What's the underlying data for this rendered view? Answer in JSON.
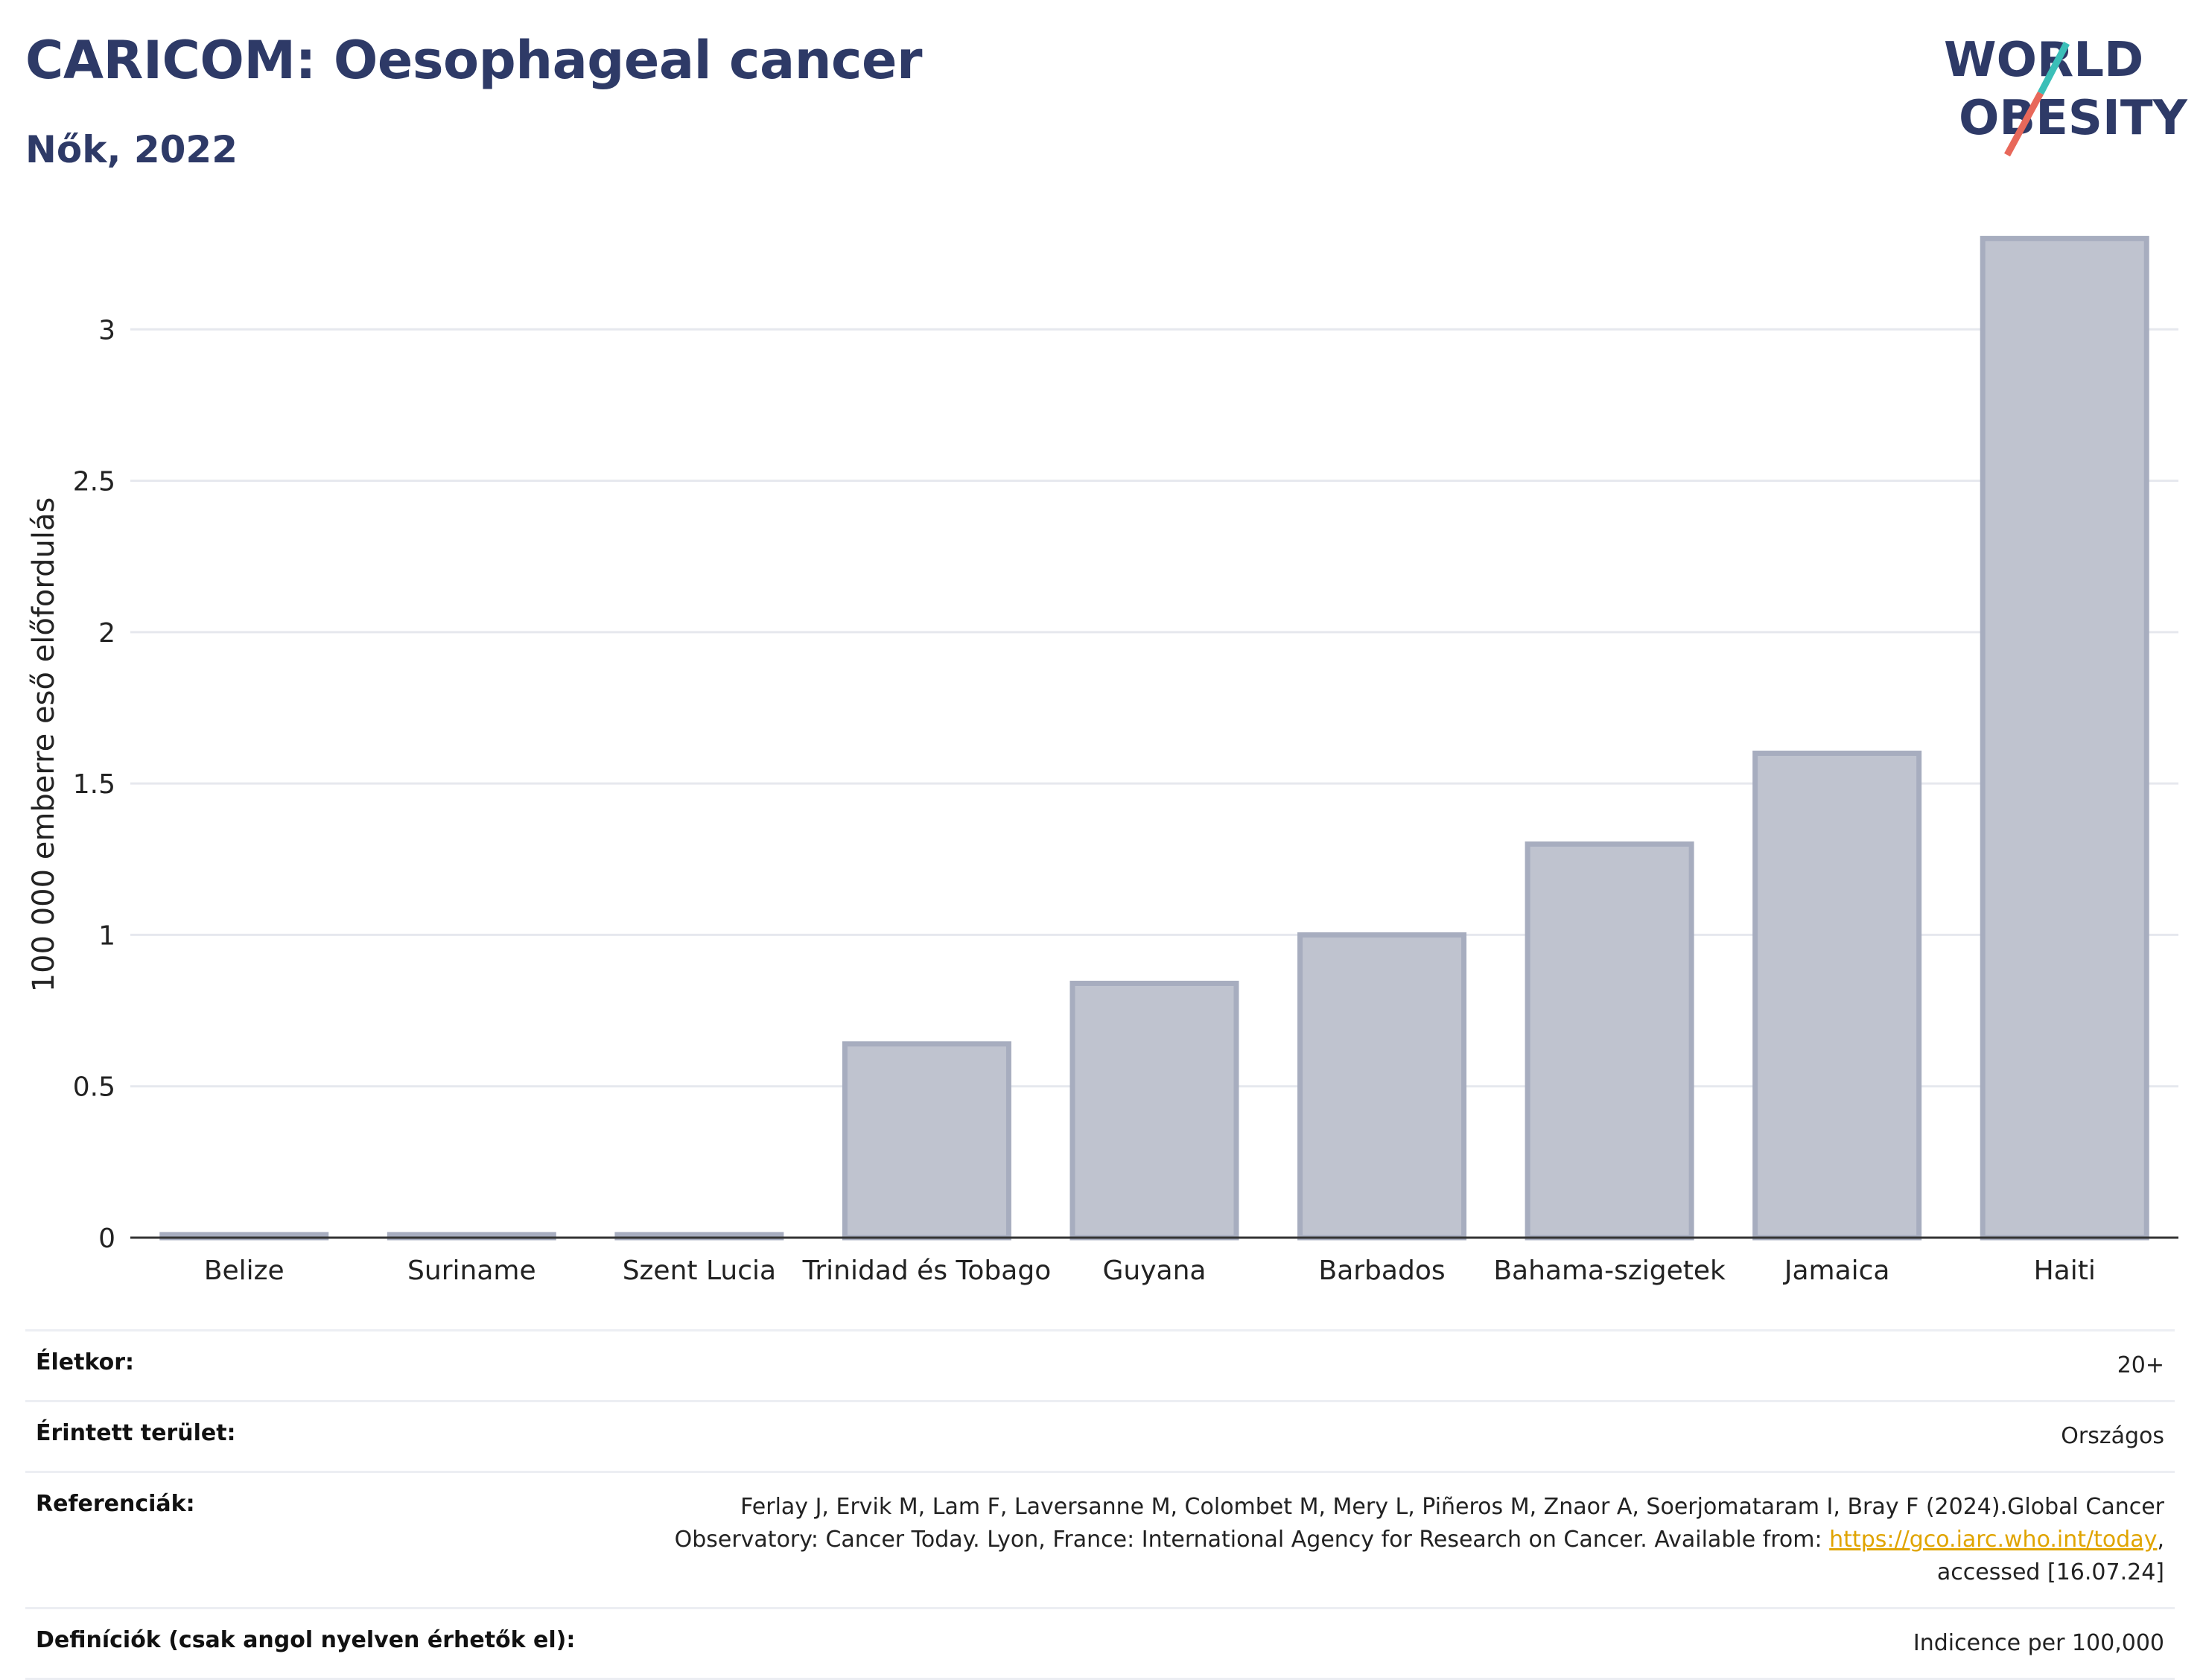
{
  "header": {
    "title": "CARICOM: Oesophageal cancer",
    "subtitle": "Nők, 2022"
  },
  "logo": {
    "line1": "WORLD",
    "line2": "OBESITY"
  },
  "chart_data": {
    "type": "bar",
    "title": "CARICOM: Oesophageal cancer",
    "subtitle": "Nők, 2022",
    "ylabel": "100 000 emberre eső előfordulás",
    "xlabel": "",
    "categories": [
      "Belize",
      "Suriname",
      "Szent Lucia",
      "Trinidad és Tobago",
      "Guyana",
      "Barbados",
      "Bahama-szigetek",
      "Jamaica",
      "Haiti"
    ],
    "values": [
      0.01,
      0.01,
      0.01,
      0.64,
      0.84,
      1.0,
      1.3,
      1.6,
      3.3
    ],
    "ylim": [
      0,
      3.35
    ],
    "yticks": [
      0,
      0.5,
      1,
      1.5,
      2,
      2.5,
      3
    ],
    "ytick_labels": [
      "0",
      "0.5",
      "1",
      "1.5",
      "2",
      "2.5",
      "3"
    ],
    "grid": true,
    "colors": {
      "bar_fill": "#bfc3cf",
      "bar_stroke": "#a7adbf",
      "axis": "#333333",
      "grid": "#e6e8ee"
    }
  },
  "info": {
    "age_label": "Életkor:",
    "age_value": "20+",
    "area_label": "Érintett terület:",
    "area_value": "Országos",
    "refs_label": "Referenciák:",
    "refs_line1": "Ferlay J, Ervik M, Lam F, Laversanne M, Colombet M, Mery L, Piñeros M, Znaor A, Soerjomataram I, Bray F (2024).Global Cancer",
    "refs_line2": "Observatory: Cancer Today. Lyon, France: International Agency for Research on Cancer. Available from:",
    "refs_link": "https://gco.iarc.who.int/today",
    "refs_line3": "accessed [16.07.24]",
    "defs_label": "Definíciók (csak angol nyelven érhetők el):",
    "defs_value": "Indicence per 100,000"
  }
}
